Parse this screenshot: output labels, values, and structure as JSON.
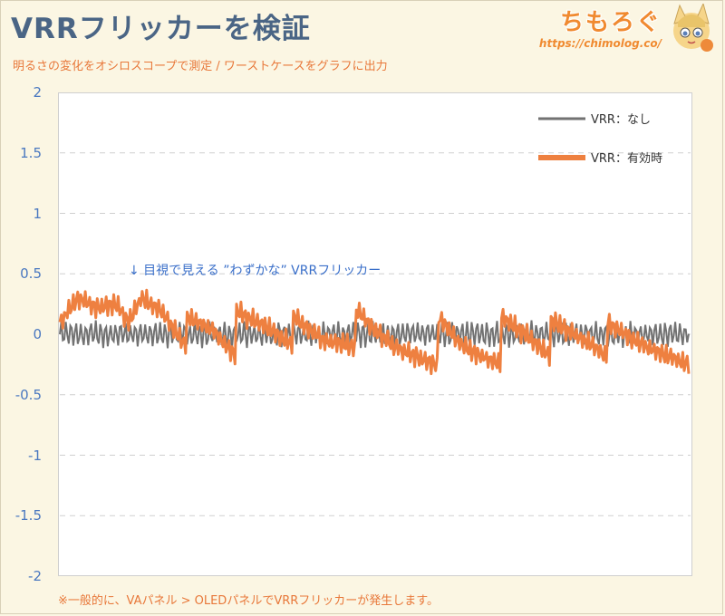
{
  "header": {
    "title": "VRRフリッカーを検証",
    "subtitle": "明るさの変化をオシロスコープで測定  /  ワーストケースをグラフに出力"
  },
  "brand": {
    "name": "ちもろぐ",
    "url": "https://chimolog.co/"
  },
  "annotation": "↓ 目視で見える ”わずかな” VRRフリッカー",
  "footnote": "※一般的に、VAパネル > OLEDパネルでVRRフリッカーが発生します。",
  "chart_data": {
    "type": "line",
    "title": "VRRフリッカーを検証",
    "ylim": [
      -2,
      2
    ],
    "yticks": [
      "2",
      "1.5",
      "1",
      "0.5",
      "0",
      "-0.5",
      "-1",
      "-1.5",
      "-2"
    ],
    "ytick_values": [
      2,
      1.5,
      1,
      0.5,
      0,
      -0.5,
      -1,
      -1.5,
      -2
    ],
    "grid": "horizontal dashed",
    "legend_position": "top-right",
    "series": [
      {
        "name": "VRR：なし",
        "color": "#727272",
        "baseline": 0.0,
        "noise_amplitude": 0.12
      },
      {
        "name": "VRR：有効時",
        "color": "#ee8040",
        "keypoints_x": [
          0,
          0.03,
          0.06,
          0.09,
          0.11,
          0.13,
          0.16,
          0.2,
          0.2,
          0.24,
          0.28,
          0.28,
          0.33,
          0.37,
          0.37,
          0.42,
          0.47,
          0.47,
          0.53,
          0.6,
          0.6,
          0.64,
          0.7,
          0.7,
          0.74,
          0.78,
          0.78,
          0.85,
          0.87,
          0.87,
          0.93,
          1.0
        ],
        "keypoints_y": [
          0.1,
          0.3,
          0.22,
          0.25,
          0.1,
          0.3,
          0.2,
          -0.1,
          0.15,
          0.05,
          -0.18,
          0.2,
          0.05,
          -0.08,
          0.15,
          -0.05,
          -0.1,
          0.2,
          -0.1,
          -0.25,
          0.15,
          -0.1,
          -0.25,
          0.15,
          0.0,
          -0.18,
          0.12,
          -0.1,
          -0.2,
          0.1,
          -0.1,
          -0.25
        ],
        "noise_amplitude": 0.1
      }
    ]
  }
}
